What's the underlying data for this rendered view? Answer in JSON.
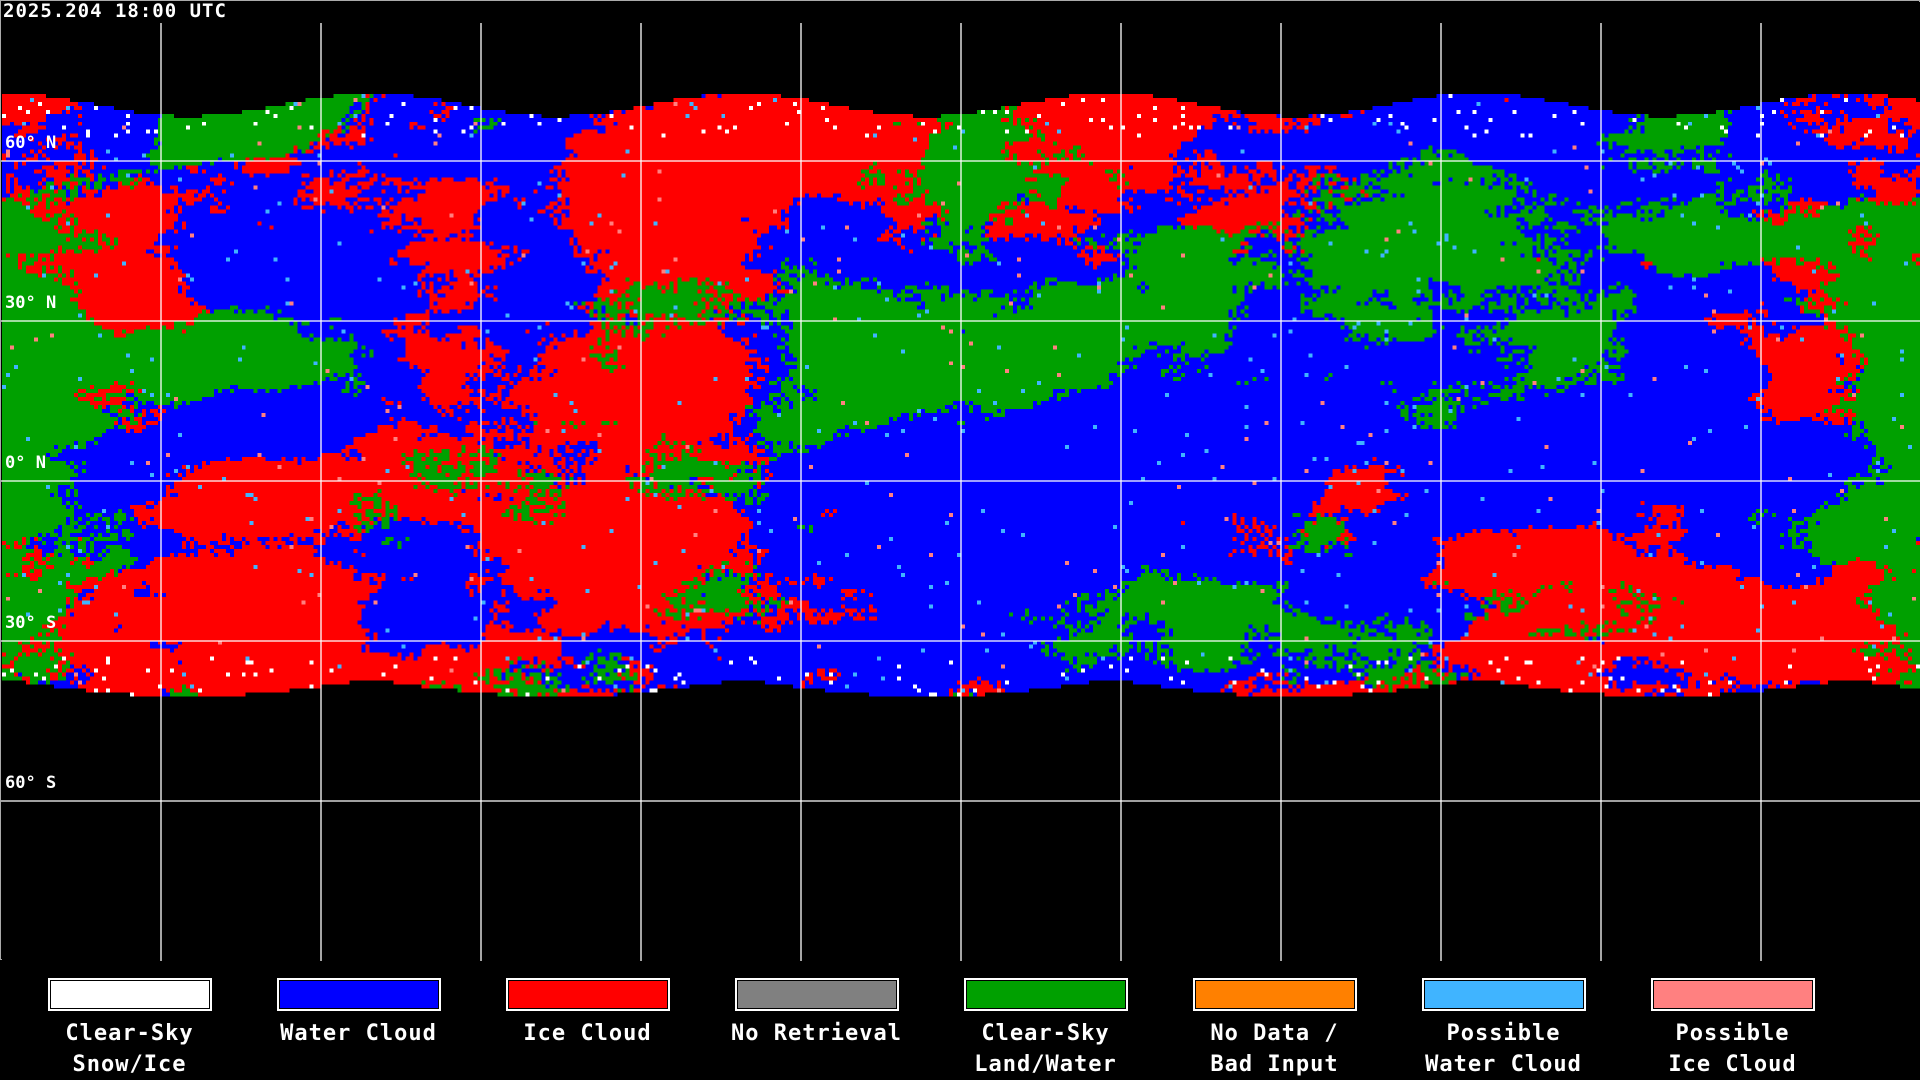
{
  "title": "2025.204 18:00 UTC",
  "latitude_labels": [
    "60° N",
    "30° N",
    "0° N",
    "30° S",
    "60° S"
  ],
  "legend": [
    {
      "label": "Clear-Sky\nSnow/Ice",
      "color": "#ffffff"
    },
    {
      "label": "Water Cloud",
      "color": "#0000ff"
    },
    {
      "label": "Ice Cloud",
      "color": "#ff0000"
    },
    {
      "label": "No Retrieval",
      "color": "#808080"
    },
    {
      "label": "Clear-Sky\nLand/Water",
      "color": "#00a000"
    },
    {
      "label": "No Data /\nBad Input",
      "color": "#ff8000"
    },
    {
      "label": "Possible\nWater Cloud",
      "color": "#40b4ff"
    },
    {
      "label": "Possible\nIce Cloud",
      "color": "#ff8080"
    }
  ],
  "background_color": "#000000"
}
